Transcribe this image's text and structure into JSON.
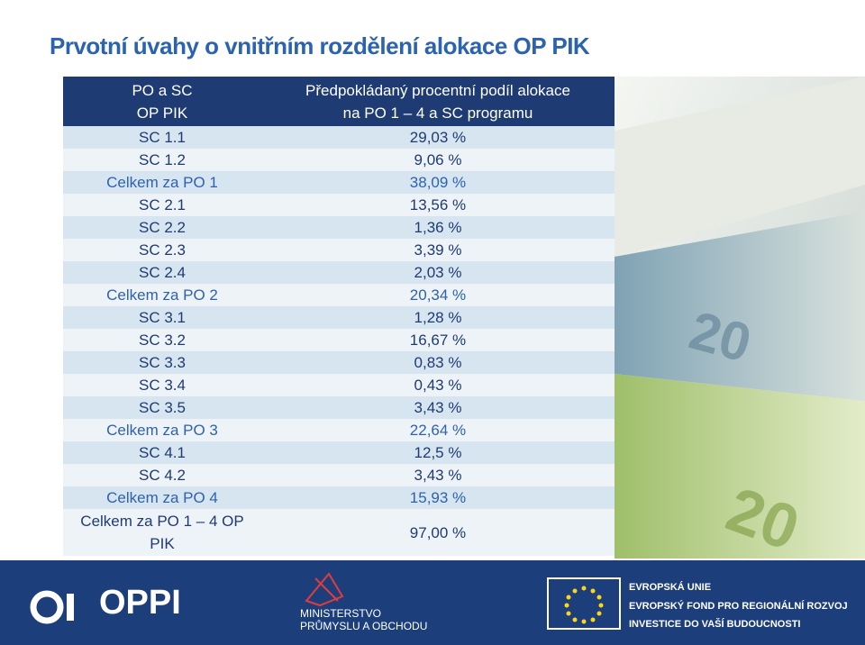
{
  "title": "Prvotní úvahy o vnitřním rozdělení alokace OP PIK",
  "table": {
    "header": [
      [
        "PO a SC",
        "OP PIK"
      ],
      [
        "Předpokládaný procentní podíl alokace",
        "na PO 1 – 4 a SC programu"
      ]
    ],
    "rows": [
      [
        "SC 1.1",
        "29,03 %"
      ],
      [
        "SC 1.2",
        "9,06 %"
      ],
      [
        "Celkem za PO 1",
        "38,09 %"
      ],
      [
        "SC 2.1",
        "13,56 %"
      ],
      [
        "SC 2.2",
        "1,36 %"
      ],
      [
        "SC 2.3",
        "3,39 %"
      ],
      [
        "SC 2.4",
        "2,03 %"
      ],
      [
        "Celkem za PO 2",
        "20,34 %"
      ],
      [
        "SC 3.1",
        "1,28 %"
      ],
      [
        "SC 3.2",
        "16,67 %"
      ],
      [
        "SC 3.3",
        "0,83 %"
      ],
      [
        "SC 3.4",
        "0,43 %"
      ],
      [
        "SC 3.5",
        "3,43 %"
      ],
      [
        "Celkem za PO 3",
        "22,64 %"
      ],
      [
        "SC 4.1",
        "12,5 %"
      ],
      [
        "SC 4.2",
        "3,43 %"
      ],
      [
        "Celkem za PO 4",
        "15,93 %"
      ]
    ],
    "total": [
      [
        "Celkem za PO 1 – 4 OP",
        "PIK"
      ],
      "97,00 %"
    ]
  },
  "footer": {
    "oppi": "OPPI",
    "ministry": [
      "MINISTERSTVO",
      "PRŮMYSLU A OBCHODU"
    ],
    "eu": [
      "EVROPSKÁ UNIE",
      "EVROPSKÝ FOND PRO REGIONÁLNÍ ROZVOJ",
      "INVESTICE DO VAŠÍ BUDOUCNOSTI"
    ]
  }
}
